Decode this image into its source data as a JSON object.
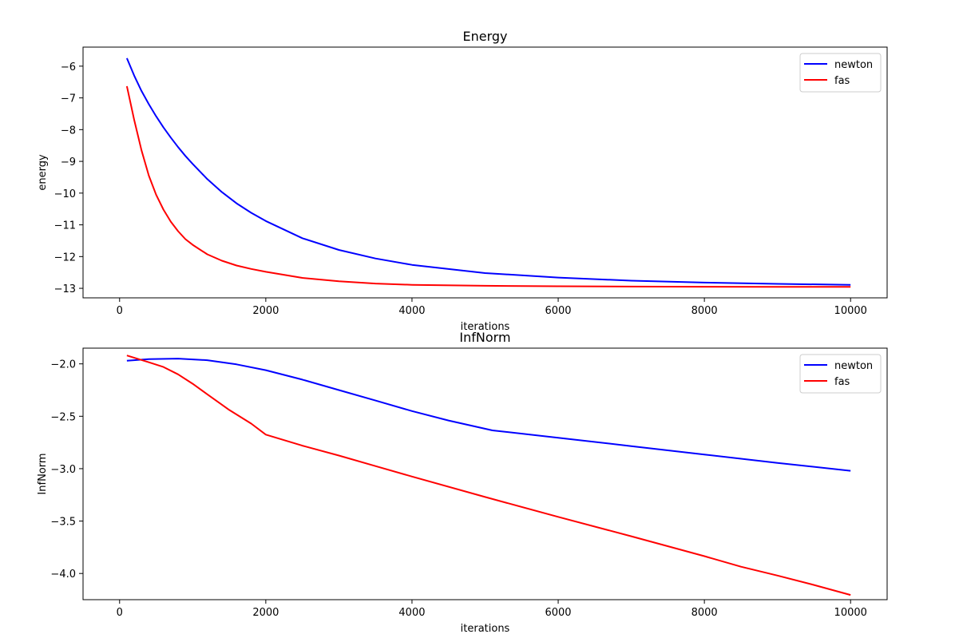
{
  "chart_data": [
    {
      "type": "line",
      "title": "Energy",
      "xlabel": "iterations",
      "ylabel": "energy",
      "xlim": [
        -500,
        10500
      ],
      "ylim": [
        -13.3,
        -5.4
      ],
      "xticks": [
        0,
        2000,
        4000,
        6000,
        8000,
        10000
      ],
      "yticks": [
        -13,
        -12,
        -11,
        -10,
        -9,
        -8,
        -7,
        -6
      ],
      "grid": false,
      "legend_position": "top-right",
      "series": [
        {
          "name": "newton",
          "color": "#0000ff",
          "x": [
            100,
            200,
            300,
            400,
            500,
            600,
            700,
            800,
            900,
            1000,
            1200,
            1400,
            1600,
            1800,
            2000,
            2500,
            3000,
            3500,
            4000,
            5000,
            6000,
            7000,
            8000,
            9000,
            10000
          ],
          "y": [
            -5.75,
            -6.3,
            -6.78,
            -7.2,
            -7.58,
            -7.93,
            -8.25,
            -8.55,
            -8.83,
            -9.08,
            -9.56,
            -9.97,
            -10.32,
            -10.62,
            -10.88,
            -11.42,
            -11.79,
            -12.06,
            -12.26,
            -12.52,
            -12.66,
            -12.76,
            -12.82,
            -12.86,
            -12.89
          ]
        },
        {
          "name": "fas",
          "color": "#ff0000",
          "x": [
            100,
            200,
            300,
            400,
            500,
            600,
            700,
            800,
            900,
            1000,
            1200,
            1400,
            1600,
            1800,
            2000,
            2500,
            3000,
            3500,
            4000,
            5000,
            6000,
            7000,
            8000,
            9000,
            10000
          ],
          "y": [
            -6.63,
            -7.7,
            -8.65,
            -9.45,
            -10.05,
            -10.52,
            -10.9,
            -11.2,
            -11.45,
            -11.63,
            -11.93,
            -12.13,
            -12.28,
            -12.39,
            -12.48,
            -12.67,
            -12.78,
            -12.85,
            -12.89,
            -12.92,
            -12.935,
            -12.945,
            -12.95,
            -12.953,
            -12.955
          ]
        }
      ]
    },
    {
      "type": "line",
      "title": "InfNorm",
      "xlabel": "iterations",
      "ylabel": "InfNorm",
      "xlim": [
        -500,
        10500
      ],
      "ylim": [
        -4.25,
        -1.85
      ],
      "xticks": [
        0,
        2000,
        4000,
        6000,
        8000,
        10000
      ],
      "yticks": [
        -4.0,
        -3.5,
        -3.0,
        -2.5,
        -2.0
      ],
      "grid": false,
      "legend_position": "top-right",
      "series": [
        {
          "name": "newton",
          "color": "#0000ff",
          "x": [
            100,
            400,
            800,
            1200,
            1600,
            2000,
            2500,
            3000,
            3500,
            4000,
            4500,
            5100,
            6000,
            7000,
            8000,
            9000,
            10000
          ],
          "y": [
            -1.97,
            -1.955,
            -1.95,
            -1.965,
            -2.005,
            -2.06,
            -2.15,
            -2.25,
            -2.35,
            -2.45,
            -2.54,
            -2.635,
            -2.705,
            -2.785,
            -2.865,
            -2.945,
            -3.02
          ]
        },
        {
          "name": "fas",
          "color": "#ff0000",
          "x": [
            100,
            400,
            600,
            800,
            1000,
            1200,
            1500,
            1800,
            2000,
            2500,
            3000,
            3500,
            4000,
            5000,
            6000,
            7000,
            8000,
            8500,
            9000,
            9500,
            10000
          ],
          "y": [
            -1.92,
            -1.985,
            -2.03,
            -2.1,
            -2.19,
            -2.29,
            -2.44,
            -2.57,
            -2.675,
            -2.78,
            -2.875,
            -2.975,
            -3.075,
            -3.27,
            -3.46,
            -3.645,
            -3.835,
            -3.935,
            -4.02,
            -4.11,
            -4.205
          ]
        }
      ]
    }
  ]
}
